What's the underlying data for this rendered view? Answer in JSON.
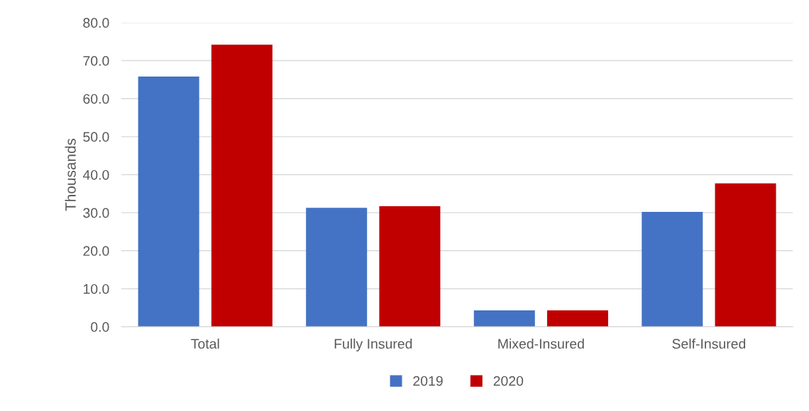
{
  "chart_data": {
    "type": "bar",
    "ylabel": "Thousands",
    "categories": [
      "Total",
      "Fully Insured",
      "Mixed-Insured",
      "Self-Insured"
    ],
    "series": [
      {
        "name": "2019",
        "color": "#4472c4",
        "values": [
          65.8,
          31.3,
          4.3,
          30.2
        ]
      },
      {
        "name": "2020",
        "color": "#c00000",
        "values": [
          74.2,
          31.7,
          4.3,
          37.7
        ]
      }
    ],
    "ylim": [
      0,
      80
    ],
    "yticks": [
      {
        "value": 0,
        "label": "0.0"
      },
      {
        "value": 10,
        "label": "10.0"
      },
      {
        "value": 20,
        "label": "20.0"
      },
      {
        "value": 30,
        "label": "30.0"
      },
      {
        "value": 40,
        "label": "40.0"
      },
      {
        "value": 50,
        "label": "50.0"
      },
      {
        "value": 60,
        "label": "60.0"
      },
      {
        "value": 70,
        "label": "70.0"
      },
      {
        "value": 80,
        "label": "80.0"
      }
    ],
    "grid": "y",
    "legend": "bottom"
  }
}
